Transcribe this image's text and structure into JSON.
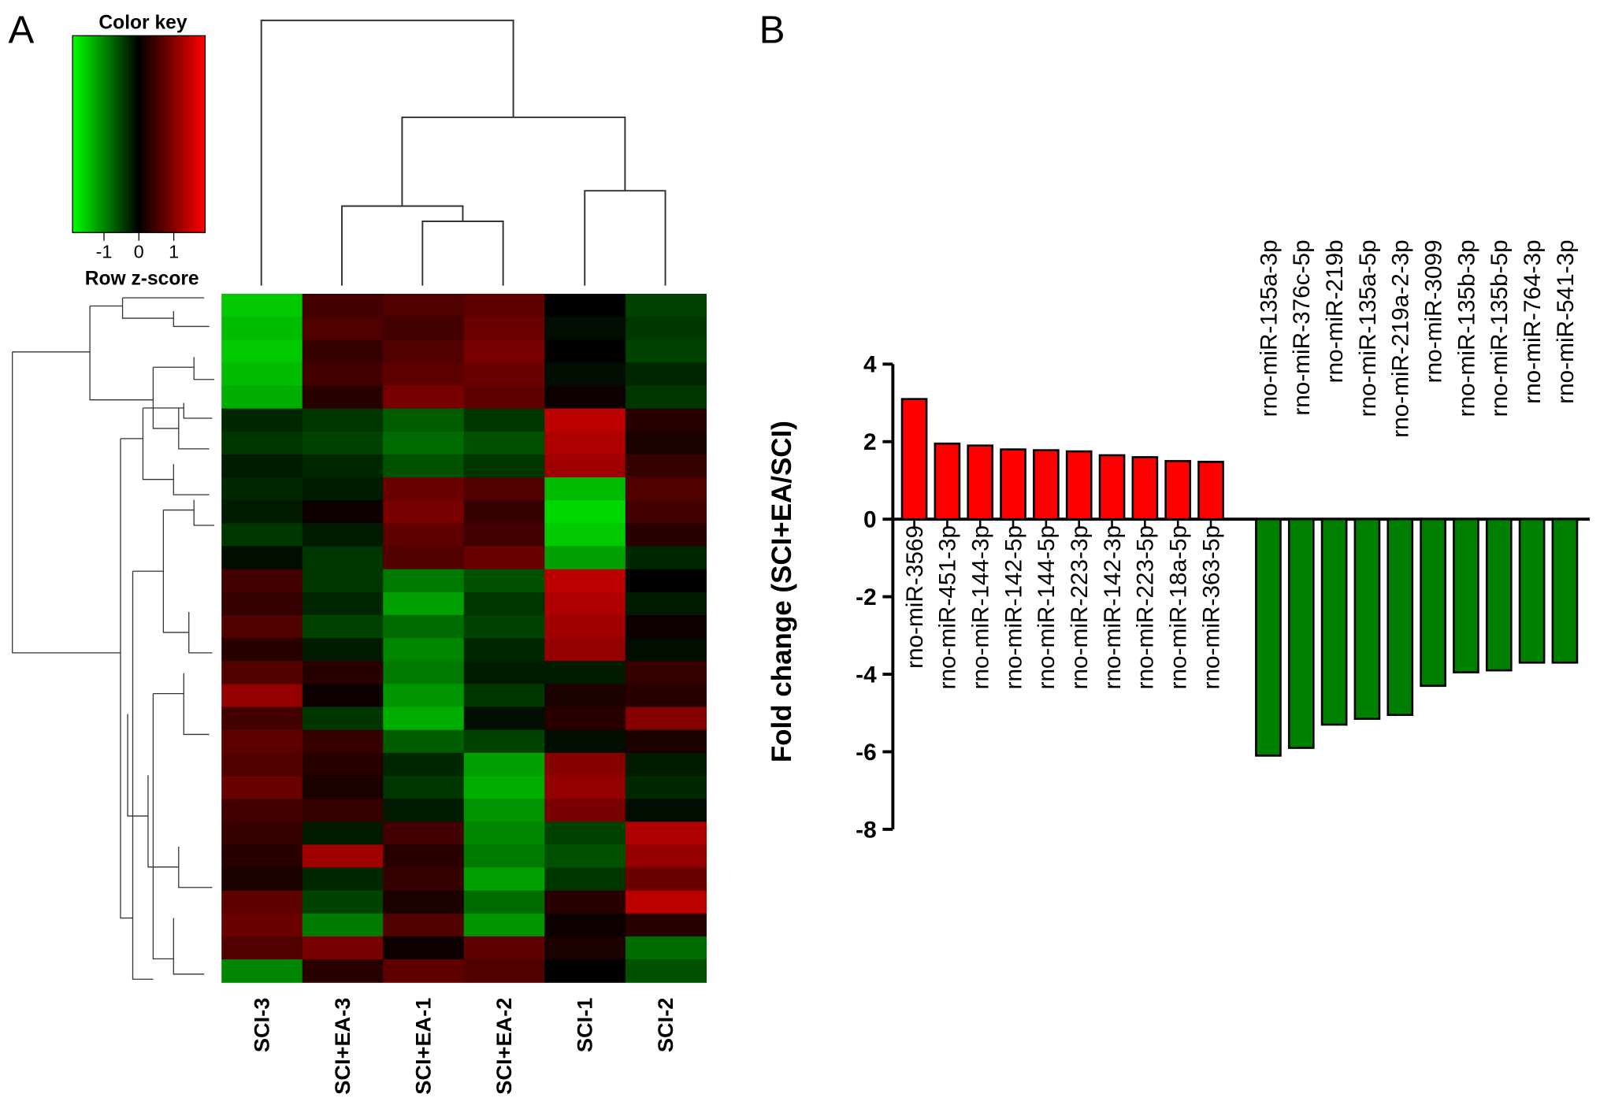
{
  "chart_data": [
    {
      "type": "heatmap",
      "panel_label": "A",
      "color_key_title": "Color key",
      "colorbar_label": "Row z-score",
      "zlim": [
        -1.9,
        1.9
      ],
      "zticks": [
        -1,
        0,
        1
      ],
      "colors": [
        "#00ff00",
        "#000000",
        "#ff0000"
      ],
      "columns": [
        "SCI-3",
        "SCI+EA-3",
        "SCI+EA-1",
        "SCI+EA-2",
        "SCI-1",
        "SCI-2"
      ],
      "values": [
        [
          -1.5,
          0.5,
          0.6,
          0.7,
          0.0,
          -0.5
        ],
        [
          -1.4,
          0.6,
          0.5,
          0.8,
          -0.1,
          -0.4
        ],
        [
          -1.5,
          0.4,
          0.6,
          0.9,
          0.0,
          -0.5
        ],
        [
          -1.4,
          0.5,
          0.7,
          0.8,
          -0.1,
          -0.3
        ],
        [
          -1.3,
          0.3,
          0.9,
          0.7,
          0.1,
          -0.4
        ],
        [
          -0.3,
          -0.4,
          -0.7,
          -0.4,
          1.4,
          0.3
        ],
        [
          -0.4,
          -0.5,
          -0.8,
          -0.6,
          1.3,
          0.2
        ],
        [
          -0.2,
          -0.3,
          -0.6,
          -0.4,
          1.2,
          0.4
        ],
        [
          -0.3,
          -0.2,
          0.8,
          0.6,
          -1.4,
          0.6
        ],
        [
          -0.2,
          0.1,
          0.9,
          0.4,
          -1.6,
          0.5
        ],
        [
          -0.4,
          -0.2,
          0.7,
          0.5,
          -1.5,
          0.3
        ],
        [
          -0.1,
          -0.4,
          0.6,
          0.8,
          -1.2,
          -0.3
        ],
        [
          0.5,
          -0.4,
          -0.9,
          -0.6,
          1.4,
          0.0
        ],
        [
          0.4,
          -0.3,
          -1.2,
          -0.4,
          1.3,
          -0.2
        ],
        [
          0.6,
          -0.5,
          -0.8,
          -0.5,
          1.2,
          0.1
        ],
        [
          0.3,
          -0.2,
          -1.0,
          -0.3,
          1.1,
          -0.1
        ],
        [
          0.6,
          0.3,
          -0.9,
          -0.2,
          -0.2,
          0.4
        ],
        [
          1.1,
          0.1,
          -1.1,
          -0.4,
          0.2,
          0.3
        ],
        [
          0.5,
          -0.4,
          -1.3,
          -0.1,
          0.3,
          1.0
        ],
        [
          0.7,
          0.4,
          -0.7,
          -0.5,
          -0.1,
          0.2
        ],
        [
          0.6,
          0.3,
          -0.3,
          -1.2,
          1.0,
          -0.2
        ],
        [
          0.8,
          0.2,
          -0.4,
          -1.3,
          1.1,
          -0.3
        ],
        [
          0.5,
          0.4,
          -0.2,
          -1.1,
          0.9,
          -0.1
        ],
        [
          0.4,
          -0.2,
          0.5,
          -1.0,
          -0.5,
          1.3
        ],
        [
          0.3,
          1.2,
          0.3,
          -0.9,
          -0.6,
          1.1
        ],
        [
          0.2,
          -0.3,
          0.4,
          -1.2,
          -0.4,
          0.8
        ],
        [
          0.7,
          -0.5,
          0.2,
          -0.8,
          0.3,
          1.4
        ],
        [
          0.8,
          -0.9,
          0.6,
          -1.1,
          0.1,
          0.3
        ],
        [
          0.6,
          0.9,
          0.1,
          0.7,
          0.2,
          -0.8
        ],
        [
          -1.0,
          0.3,
          0.7,
          0.6,
          0.0,
          -0.6
        ]
      ]
    },
    {
      "type": "bar",
      "panel_label": "B",
      "y_label": "Fold change (SCI+EA/SCI)",
      "categories": [
        "rno-miR-3569",
        "rno-miR-451-3p",
        "rno-miR-144-3p",
        "rno-miR-142-5p",
        "rno-miR-144-5p",
        "rno-miR-223-3p",
        "rno-miR-142-3p",
        "rno-miR-223-5p",
        "rno-miR-18a-5p",
        "rno-miR-363-5p",
        "rno-miR-135a-3p",
        "rno-miR-376c-5p",
        "rno-miR-219b",
        "rno-miR-135a-5p",
        "rno-miR-219a-2-3p",
        "rno-miR-3099",
        "rno-miR-135b-3p",
        "rno-miR-135b-5p",
        "rno-miR-764-3p",
        "rno-miR-541-3p"
      ],
      "values": [
        3.1,
        1.95,
        1.9,
        1.8,
        1.78,
        1.75,
        1.65,
        1.6,
        1.5,
        1.48,
        -6.1,
        -5.9,
        -5.3,
        -5.15,
        -5.05,
        -4.3,
        -3.95,
        -3.9,
        -3.7,
        -3.7
      ],
      "color_positive": "#ff0000",
      "color_negative": "#008000",
      "ylim": [
        -8,
        4
      ],
      "yticks": [
        -8,
        -6,
        -4,
        -2,
        0,
        2,
        4
      ]
    }
  ]
}
